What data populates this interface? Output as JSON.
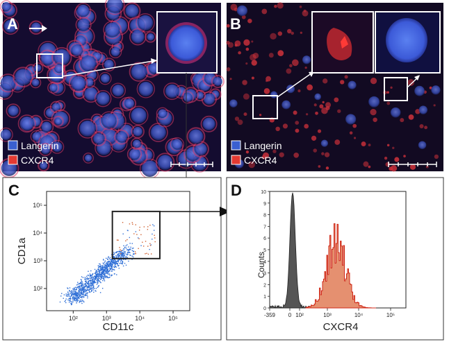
{
  "panels": {
    "a": {
      "letter": "A",
      "legend": [
        {
          "label": "Langerin",
          "color": "#3a5fd0"
        },
        {
          "label": "CXCR4",
          "color": "#e43a32"
        }
      ]
    },
    "b": {
      "letter": "B",
      "legend": [
        {
          "label": "Langerin",
          "color": "#3a5fd0"
        },
        {
          "label": "CXCR4",
          "color": "#e43a32"
        }
      ]
    },
    "c": {
      "letter": "C",
      "xlabel": "CD11c",
      "ylabel": "CD1a",
      "xticks": [
        "10²",
        "10³",
        "10⁴",
        "10⁵"
      ],
      "yticks": [
        "10²",
        "10³",
        "10⁴",
        "10⁵"
      ]
    },
    "d": {
      "letter": "D",
      "xlabel": "CXCR4",
      "ylabel": "Counts",
      "xticks": [
        "-359",
        "0",
        "10²",
        "10³",
        "10⁴",
        "10⁵"
      ],
      "yticks": [
        "0",
        "1",
        "2",
        "3",
        "4",
        "5",
        "6",
        "7",
        "8",
        "9",
        "10"
      ]
    }
  },
  "chart_data": [
    {
      "type": "scatter",
      "panel": "C",
      "xlabel": "CD11c",
      "ylabel": "CD1a",
      "scale": "log",
      "gate": {
        "x": [
          1500,
          40000
        ],
        "y": [
          1200,
          60000
        ]
      },
      "series": [
        {
          "color": "#2f6fd6",
          "points": [
            [
              200,
              150
            ],
            [
              300,
              250
            ],
            [
              450,
              300
            ],
            [
              600,
              500
            ],
            [
              800,
              700
            ],
            [
              1000,
              900
            ],
            [
              250,
              180
            ],
            [
              380,
              350
            ],
            [
              520,
              420
            ],
            [
              700,
              600
            ]
          ]
        },
        {
          "color": "#d06030",
          "points": [
            [
              3000,
              4000
            ],
            [
              6000,
              8000
            ],
            [
              9000,
              5000
            ],
            [
              12000,
              12000
            ],
            [
              20000,
              9000
            ],
            [
              4500,
              15000
            ]
          ]
        }
      ]
    },
    {
      "type": "area",
      "panel": "D",
      "xlabel": "CXCR4",
      "ylabel": "Counts",
      "ylim": [
        0,
        10
      ],
      "series": [
        {
          "color": "#555555",
          "peak_x": 40,
          "peak_y": 9.8
        },
        {
          "color": "#e55030",
          "peak_x": 1000,
          "peak_y": 6.5
        }
      ]
    }
  ]
}
